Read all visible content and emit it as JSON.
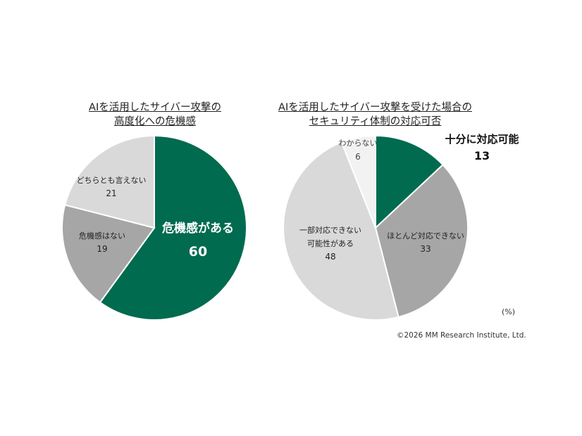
{
  "chart_data": [
    {
      "type": "pie",
      "title_lines": [
        "AIを活用したサイバー攻撃の",
        "高度化への危機感"
      ],
      "slices": [
        {
          "label": "危機感がある",
          "value": 60,
          "color": "#006b4f",
          "text_color": "#ffffff",
          "emphasis": true
        },
        {
          "label": "危機感はない",
          "value": 19,
          "color": "#a6a6a6",
          "text_color": "#222222"
        },
        {
          "label": "どちらとも言えない",
          "value": 21,
          "color": "#d9d9d9",
          "text_color": "#222222"
        }
      ]
    },
    {
      "type": "pie",
      "title_lines": [
        "AIを活用したサイバー攻撃を受けた場合の",
        "セキュリティ体制の対応可否"
      ],
      "slices": [
        {
          "label": "十分に対応可能",
          "value": 13,
          "color": "#006b4f",
          "text_color": "#111111",
          "emphasis": true
        },
        {
          "label": "ほとんど対応できない",
          "value": 33,
          "color": "#a6a6a6",
          "text_color": "#222222"
        },
        {
          "label_lines": [
            "一部対応できない",
            "可能性がある"
          ],
          "value": 48,
          "color": "#d9d9d9",
          "text_color": "#222222"
        },
        {
          "label": "わからない",
          "value": 6,
          "color": "#f2f2f2",
          "text_color": "#444444"
        }
      ]
    }
  ],
  "unit": "(%)",
  "copyright": "©2026 MM Research Institute, Ltd."
}
